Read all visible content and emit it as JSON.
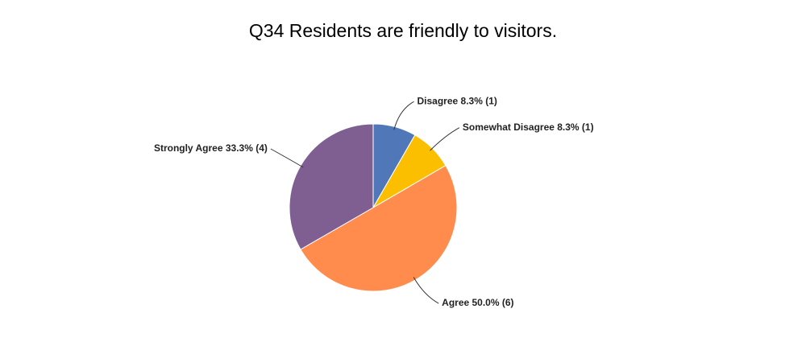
{
  "chart_data": {
    "type": "pie",
    "title": "Q34 Residents are friendly to visitors.",
    "values": [
      8.3,
      8.3,
      50.0,
      33.3
    ],
    "value_labels": [
      "Disagree 8.3% (1)",
      "Somewhat Disagree 8.3% (1)",
      "Agree 50.0% (6)",
      "Strongly Agree 33.3% (4)"
    ],
    "colors": [
      "#5078b8",
      "#fbbf00",
      "#ff8c4c",
      "#7f5f92"
    ]
  }
}
